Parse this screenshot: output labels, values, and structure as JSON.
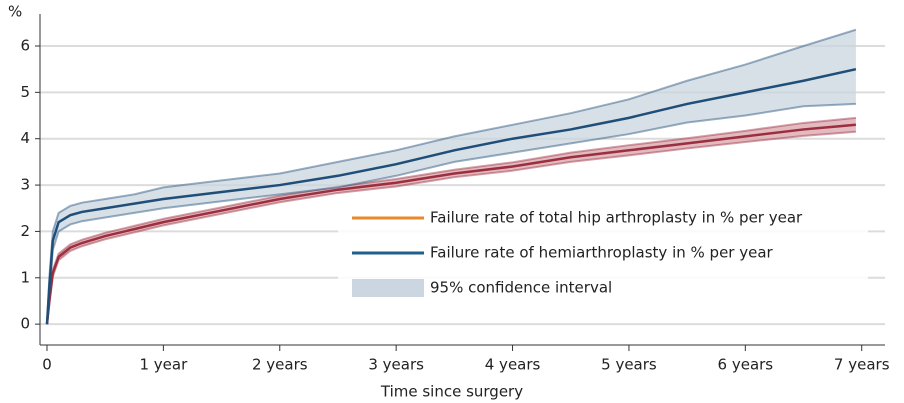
{
  "chart_data": {
    "type": "line",
    "y_unit": "%",
    "xlabel": "Time since surgery",
    "x": [
      0,
      0.02,
      0.05,
      0.1,
      0.2,
      0.3,
      0.5,
      0.75,
      1,
      1.5,
      2,
      2.5,
      3,
      3.5,
      4,
      4.5,
      5,
      5.5,
      6,
      6.5,
      6.95
    ],
    "series": [
      {
        "name": "Failure rate of total hip arthroplasty in % per year",
        "color": "#9b2f3f",
        "legend_color": "#e8892a",
        "ci_color": "#d9a3ab",
        "values": [
          0,
          0.5,
          1.1,
          1.45,
          1.65,
          1.75,
          1.9,
          2.05,
          2.2,
          2.45,
          2.7,
          2.9,
          3.05,
          3.25,
          3.4,
          3.6,
          3.75,
          3.9,
          4.05,
          4.2,
          4.3
        ],
        "ci_lower": [
          0,
          0.43,
          1.03,
          1.38,
          1.58,
          1.68,
          1.83,
          1.98,
          2.13,
          2.38,
          2.63,
          2.83,
          2.97,
          3.17,
          3.31,
          3.5,
          3.64,
          3.79,
          3.93,
          4.06,
          4.15
        ],
        "ci_upper": [
          0,
          0.57,
          1.17,
          1.52,
          1.72,
          1.82,
          1.97,
          2.12,
          2.27,
          2.52,
          2.77,
          2.97,
          3.13,
          3.33,
          3.49,
          3.7,
          3.86,
          4.01,
          4.17,
          4.34,
          4.45
        ]
      },
      {
        "name": "Failure rate of hemiarthroplasty in % per year",
        "color": "#1f4e79",
        "legend_color": "#1f5f8b",
        "ci_color": "#c9d4df",
        "values": [
          0,
          0.8,
          1.8,
          2.2,
          2.35,
          2.42,
          2.5,
          2.6,
          2.7,
          2.85,
          3.0,
          3.2,
          3.45,
          3.75,
          4.0,
          4.2,
          4.45,
          4.75,
          5.0,
          5.25,
          5.5
        ],
        "ci_lower": [
          0,
          0.6,
          1.6,
          2.0,
          2.15,
          2.22,
          2.3,
          2.4,
          2.5,
          2.65,
          2.8,
          2.95,
          3.2,
          3.5,
          3.7,
          3.9,
          4.1,
          4.35,
          4.5,
          4.7,
          4.75
        ],
        "ci_upper": [
          0,
          1.0,
          2.0,
          2.4,
          2.55,
          2.62,
          2.7,
          2.8,
          2.95,
          3.1,
          3.25,
          3.5,
          3.75,
          4.05,
          4.3,
          4.55,
          4.85,
          5.25,
          5.6,
          6.0,
          6.35
        ]
      }
    ],
    "ci_label": "95% confidence interval",
    "ci_legend_color": "#ccd6e0",
    "xlim": [
      -0.06,
      7.2
    ],
    "ylim": [
      -0.45,
      6.69
    ],
    "xticks": [
      0,
      {
        "value": 1,
        "label": "1 year"
      },
      {
        "value": 2,
        "label": "2 years"
      },
      {
        "value": 3,
        "label": "3 years"
      },
      {
        "value": 4,
        "label": "4 years"
      },
      {
        "value": 5,
        "label": "5 years"
      },
      {
        "value": 6,
        "label": "6 years"
      },
      {
        "value": 7,
        "label": "7  years"
      }
    ],
    "yticks": [
      0,
      1,
      2,
      3,
      4,
      5,
      6
    ],
    "grid": true
  }
}
